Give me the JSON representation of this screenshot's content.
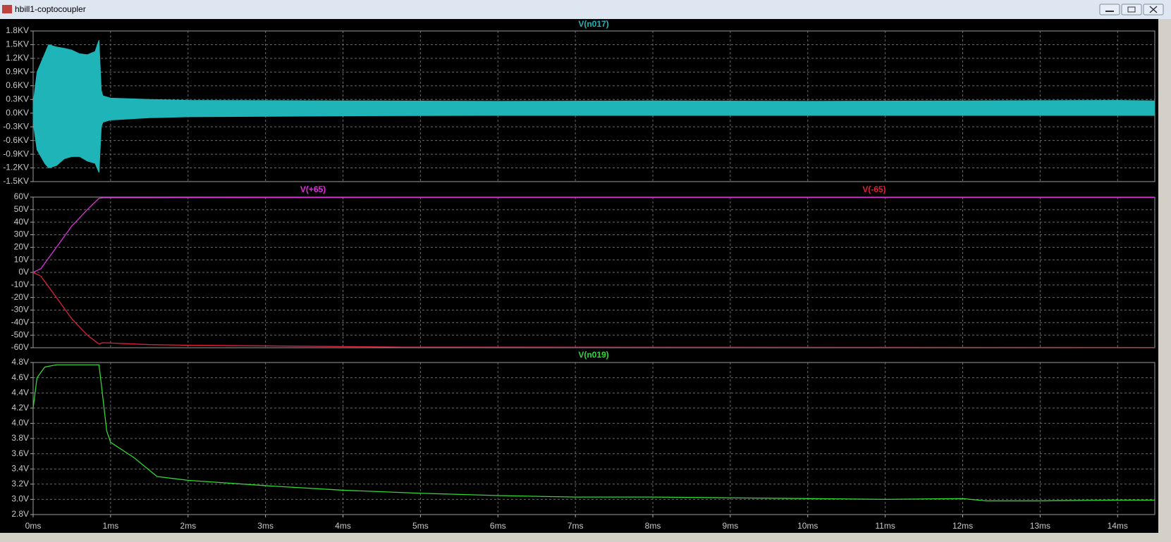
{
  "window": {
    "title": "hbill1-coptocoupler"
  },
  "xaxis": {
    "xlim": [
      0,
      14.48
    ],
    "xticks": [
      {
        "value": 0,
        "label": "0ms"
      },
      {
        "value": 1,
        "label": "1ms"
      },
      {
        "value": 2,
        "label": "2ms"
      },
      {
        "value": 3,
        "label": "3ms"
      },
      {
        "value": 4,
        "label": "4ms"
      },
      {
        "value": 5,
        "label": "5ms"
      },
      {
        "value": 6,
        "label": "6ms"
      },
      {
        "value": 7,
        "label": "7ms"
      },
      {
        "value": 8,
        "label": "8ms"
      },
      {
        "value": 9,
        "label": "9ms"
      },
      {
        "value": 10,
        "label": "10ms"
      },
      {
        "value": 11,
        "label": "11ms"
      },
      {
        "value": 12,
        "label": "12ms"
      },
      {
        "value": 13,
        "label": "13ms"
      },
      {
        "value": 14,
        "label": "14ms"
      }
    ]
  },
  "chart_data": [
    {
      "type": "area",
      "grid": true,
      "ylim": [
        -1.5,
        1.8
      ],
      "yticks": [
        {
          "value": 1.8,
          "label": "1.8KV"
        },
        {
          "value": 1.5,
          "label": "1.5KV"
        },
        {
          "value": 1.2,
          "label": "1.2KV"
        },
        {
          "value": 0.9,
          "label": "0.9KV"
        },
        {
          "value": 0.6,
          "label": "0.6KV"
        },
        {
          "value": 0.3,
          "label": "0.3KV"
        },
        {
          "value": 0,
          "label": "0.0KV"
        },
        {
          "value": -0.3,
          "label": "-0.3KV"
        },
        {
          "value": -0.6,
          "label": "-0.6KV"
        },
        {
          "value": -0.9,
          "label": "-0.9KV"
        },
        {
          "value": -1.2,
          "label": "-1.2KV"
        },
        {
          "value": -1.5,
          "label": "-1.5KV"
        }
      ],
      "x": [
        0,
        0.05,
        0.15,
        0.2,
        0.3,
        0.4,
        0.5,
        0.6,
        0.7,
        0.8,
        0.85,
        0.88,
        0.9,
        1,
        1.5,
        2,
        4,
        6,
        8,
        10,
        12,
        14,
        14.48
      ],
      "series": [
        {
          "name": "V(n017)",
          "color": "#1fb5b8",
          "upper": [
            0.2,
            0.9,
            1.3,
            1.5,
            1.45,
            1.42,
            1.38,
            1.3,
            1.28,
            1.35,
            1.6,
            0.5,
            0.38,
            0.33,
            0.3,
            0.28,
            0.27,
            0.26,
            0.27,
            0.26,
            0.27,
            0.28,
            0.27
          ],
          "lower": [
            -0.2,
            -0.8,
            -1.1,
            -1.2,
            -1.15,
            -1.0,
            -0.95,
            -0.95,
            -1.05,
            -1.1,
            -1.3,
            -0.3,
            -0.2,
            -0.15,
            -0.1,
            -0.08,
            -0.06,
            -0.05,
            -0.05,
            -0.05,
            -0.05,
            -0.05,
            -0.05
          ]
        }
      ]
    },
    {
      "type": "line",
      "grid": true,
      "ylim": [
        -60,
        60
      ],
      "yticks": [
        {
          "value": 60,
          "label": "60V"
        },
        {
          "value": 50,
          "label": "50V"
        },
        {
          "value": 40,
          "label": "40V"
        },
        {
          "value": 30,
          "label": "30V"
        },
        {
          "value": 20,
          "label": "20V"
        },
        {
          "value": 10,
          "label": "10V"
        },
        {
          "value": 0,
          "label": "0V"
        },
        {
          "value": -10,
          "label": "-10V"
        },
        {
          "value": -20,
          "label": "-20V"
        },
        {
          "value": -30,
          "label": "-30V"
        },
        {
          "value": -40,
          "label": "-40V"
        },
        {
          "value": -50,
          "label": "-50V"
        },
        {
          "value": -60,
          "label": "-60V"
        }
      ],
      "x": [
        0,
        0.1,
        0.3,
        0.5,
        0.7,
        0.85,
        0.9,
        1.5,
        2,
        4.8,
        14.48
      ],
      "series": [
        {
          "name": "V(+65)",
          "color": "#e030e0",
          "values": [
            0,
            3,
            20,
            37,
            50,
            59,
            59.5,
            59.5,
            59.6,
            59.8,
            59.8
          ]
        },
        {
          "name": "V(-65)",
          "color": "#e0203a",
          "values": [
            0,
            -3,
            -20,
            -37,
            -50,
            -57,
            -56,
            -57.5,
            -58,
            -59.5,
            -59.8
          ]
        }
      ]
    },
    {
      "type": "line",
      "grid": true,
      "ylim": [
        2.8,
        4.8
      ],
      "yticks": [
        {
          "value": 4.8,
          "label": "4.8V"
        },
        {
          "value": 4.6,
          "label": "4.6V"
        },
        {
          "value": 4.4,
          "label": "4.4V"
        },
        {
          "value": 4.2,
          "label": "4.2V"
        },
        {
          "value": 4,
          "label": "4.0V"
        },
        {
          "value": 3.8,
          "label": "3.8V"
        },
        {
          "value": 3.6,
          "label": "3.6V"
        },
        {
          "value": 3.4,
          "label": "3.4V"
        },
        {
          "value": 3.2,
          "label": "3.2V"
        },
        {
          "value": 3,
          "label": "3.0V"
        },
        {
          "value": 2.8,
          "label": "2.8V"
        }
      ],
      "x": [
        0,
        0.05,
        0.15,
        0.3,
        0.85,
        0.87,
        0.95,
        1,
        1.3,
        1.6,
        2,
        3,
        4,
        5,
        6,
        7,
        8,
        9,
        10,
        11,
        12,
        12.3,
        13,
        14,
        14.48
      ],
      "series": [
        {
          "name": "V(n019)",
          "color": "#30d830",
          "values": [
            4.2,
            4.6,
            4.74,
            4.77,
            4.77,
            4.6,
            3.9,
            3.75,
            3.55,
            3.3,
            3.25,
            3.18,
            3.12,
            3.08,
            3.05,
            3.03,
            3.03,
            3.02,
            3.01,
            3.0,
            3.01,
            2.98,
            2.98,
            2.99,
            2.99
          ]
        }
      ]
    }
  ]
}
